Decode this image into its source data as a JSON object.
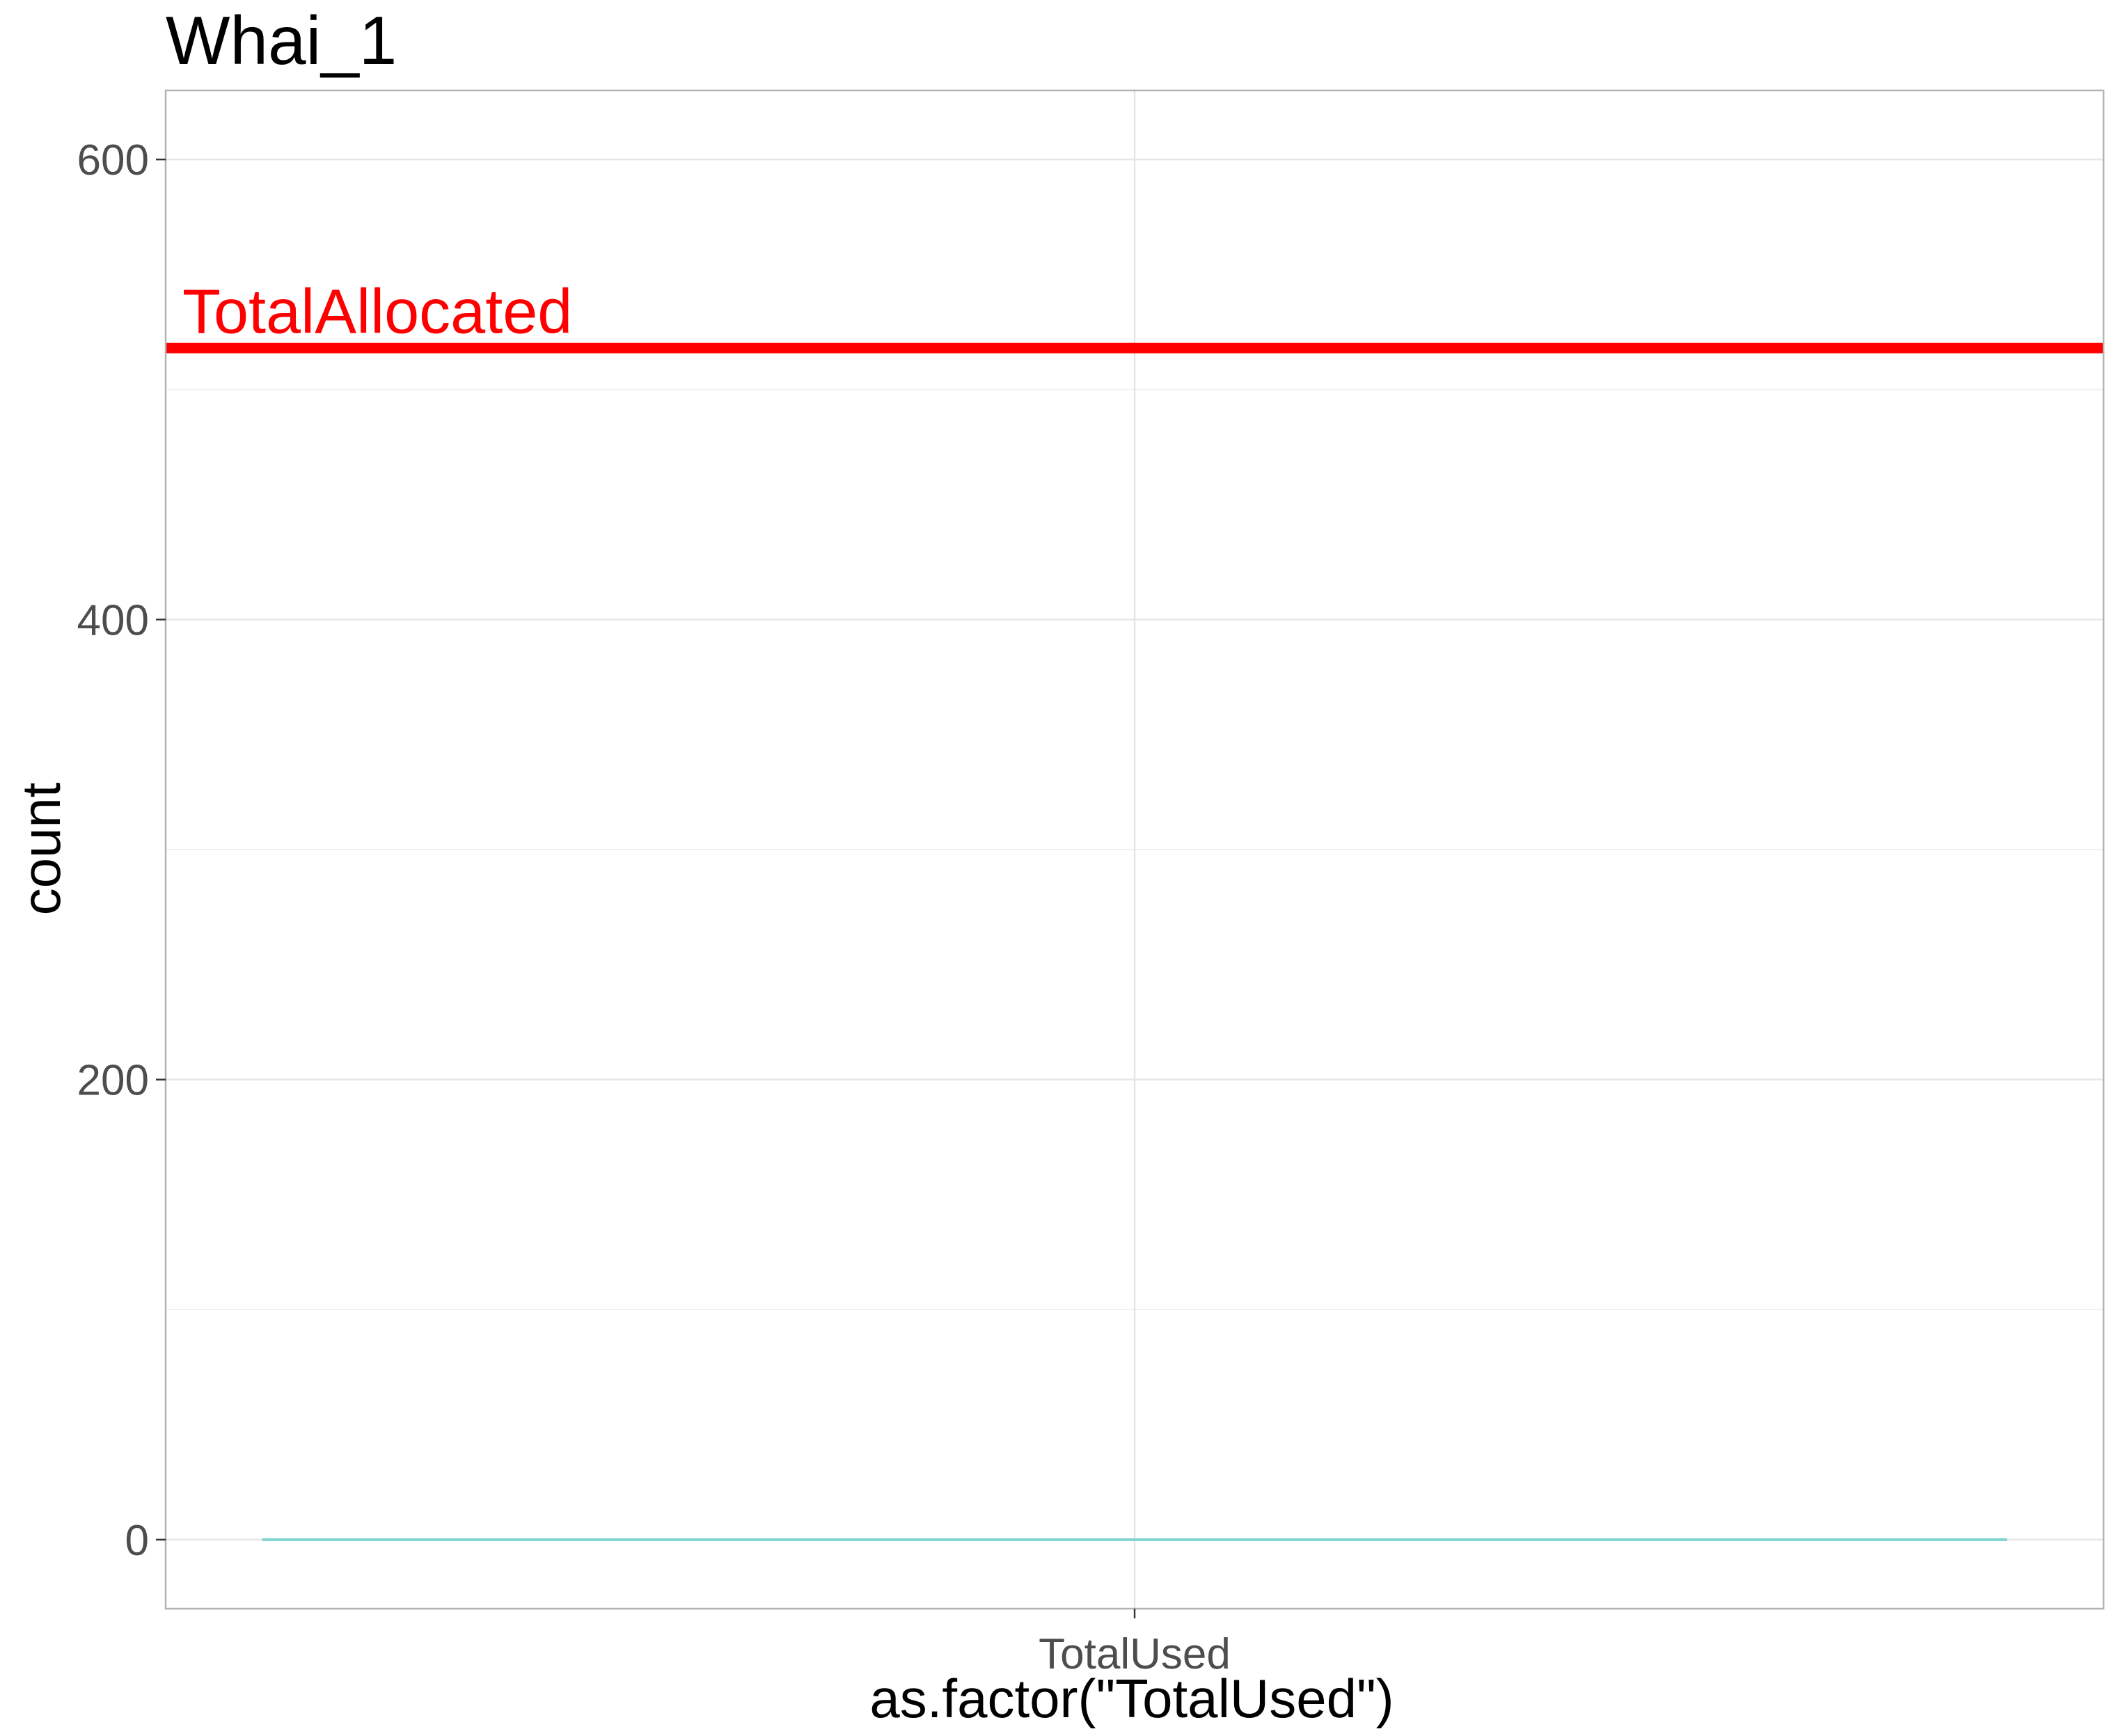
{
  "chart_data": {
    "type": "bar",
    "title": "Whai_1",
    "xlabel": "as.factor(\"TotalUsed\")",
    "ylabel": "count",
    "categories": [
      "TotalUsed"
    ],
    "values": [
      0
    ],
    "ylim": [
      -30,
      630
    ],
    "yticks": [
      0,
      200,
      400,
      600
    ],
    "grid": true,
    "legend": "none",
    "reference_line": {
      "value": 518,
      "label": "TotalAllocated",
      "color": "#FF0000"
    },
    "bar_color": "#7FD3CF"
  },
  "colors": {
    "grid": "#E5E5E5",
    "panel_border": "#B3B3B3",
    "tick_text": "#4D4D4D",
    "text": "#000000",
    "background": "#FFFFFF"
  }
}
